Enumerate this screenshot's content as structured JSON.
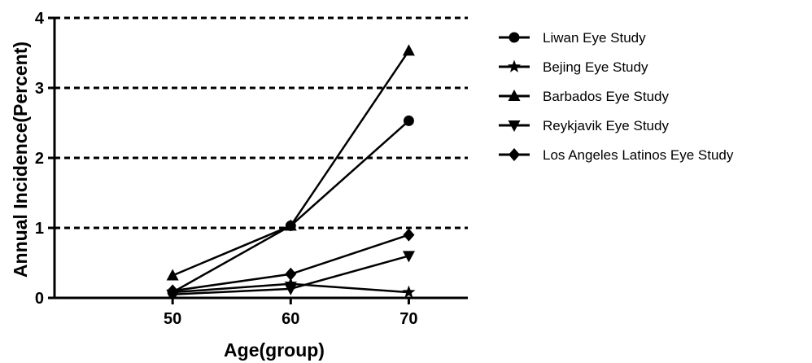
{
  "chart_data": {
    "type": "line",
    "xlabel": "Age(group)",
    "ylabel": "Annual Incidence(Percent)",
    "x": [
      50,
      60,
      70
    ],
    "xlim": [
      40,
      75
    ],
    "ylim": [
      0,
      4
    ],
    "xticks": [
      "50",
      "60",
      "70"
    ],
    "yticks": [
      "0",
      "1",
      "2",
      "3",
      "4"
    ],
    "grid": "horizontal-dashed",
    "legend_position": "right",
    "series": [
      {
        "name": "Liwan Eye Study",
        "marker": "circle",
        "values": [
          0.08,
          1.03,
          2.53
        ]
      },
      {
        "name": "Bejing Eye Study",
        "marker": "star",
        "values": [
          0.08,
          0.2,
          0.08
        ]
      },
      {
        "name": "Barbados Eye Study",
        "marker": "triangle-up",
        "values": [
          0.32,
          1.03,
          3.53
        ]
      },
      {
        "name": "Reykjavik Eye Study",
        "marker": "triangle-down",
        "values": [
          0.05,
          0.13,
          0.6
        ]
      },
      {
        "name": "Los Angeles Latinos Eye Study",
        "marker": "diamond",
        "values": [
          0.1,
          0.34,
          0.9
        ]
      }
    ]
  }
}
